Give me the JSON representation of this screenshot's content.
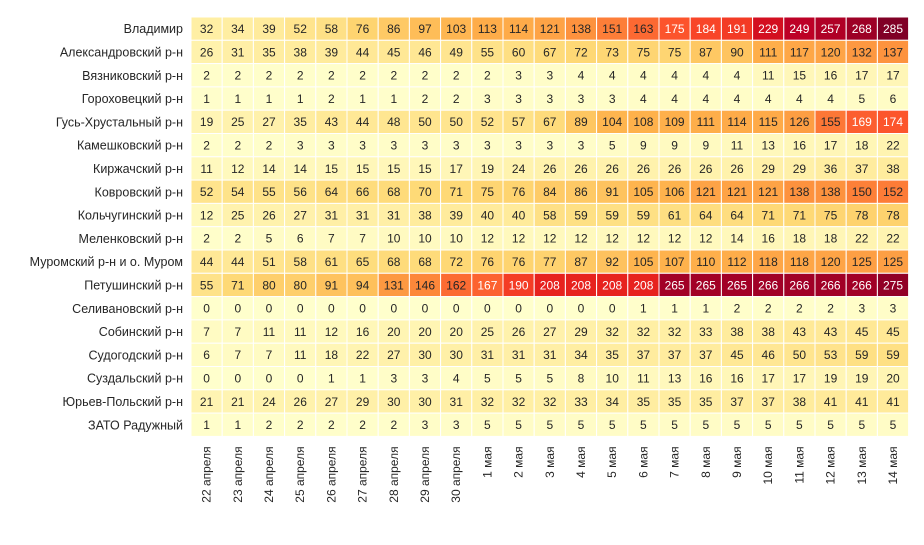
{
  "chart_data": {
    "type": "heatmap",
    "title": "",
    "xlabel": "",
    "ylabel": "",
    "x": [
      "22 апреля",
      "23 апреля",
      "24 апреля",
      "25 апреля",
      "26 апреля",
      "27 апреля",
      "28 апреля",
      "29 апреля",
      "30 апреля",
      "1 мая",
      "2 мая",
      "3 мая",
      "4 мая",
      "5 мая",
      "6 мая",
      "7 мая",
      "8 мая",
      "9 мая",
      "10 мая",
      "11 мая",
      "12 мая",
      "13 мая",
      "14 мая"
    ],
    "y": [
      "Владимир",
      "Александровский р-н",
      "Вязниковский р-н",
      "Гороховецкий р-н",
      "Гусь-Хрустальный р-н",
      "Камешковский р-н",
      "Киржачский р-н",
      "Ковровский р-н",
      "Кольчугинский р-н",
      "Меленковский р-н",
      "Муромский р-н и о. Муром",
      "Петушинский р-н",
      "Селивановский р-н",
      "Собинский р-н",
      "Судогодский р-н",
      "Суздальский р-н",
      "Юрьев-Польский р-н",
      "ЗАТО Радужный"
    ],
    "values": [
      [
        32,
        34,
        39,
        52,
        58,
        76,
        86,
        97,
        103,
        113,
        114,
        121,
        138,
        151,
        163,
        175,
        184,
        191,
        229,
        249,
        257,
        268,
        285
      ],
      [
        26,
        31,
        35,
        38,
        39,
        44,
        45,
        46,
        49,
        55,
        60,
        67,
        72,
        73,
        75,
        75,
        87,
        90,
        111,
        117,
        120,
        132,
        137
      ],
      [
        2,
        2,
        2,
        2,
        2,
        2,
        2,
        2,
        2,
        2,
        3,
        3,
        4,
        4,
        4,
        4,
        4,
        4,
        11,
        15,
        16,
        17,
        17
      ],
      [
        1,
        1,
        1,
        1,
        2,
        1,
        1,
        2,
        2,
        3,
        3,
        3,
        3,
        3,
        4,
        4,
        4,
        4,
        4,
        4,
        4,
        5,
        6
      ],
      [
        19,
        25,
        27,
        35,
        43,
        44,
        48,
        50,
        50,
        52,
        57,
        67,
        89,
        104,
        108,
        109,
        111,
        114,
        115,
        126,
        155,
        169,
        174
      ],
      [
        2,
        2,
        2,
        3,
        3,
        3,
        3,
        3,
        3,
        3,
        3,
        3,
        3,
        5,
        9,
        9,
        9,
        11,
        13,
        16,
        17,
        18,
        22
      ],
      [
        11,
        12,
        14,
        14,
        15,
        15,
        15,
        15,
        17,
        19,
        24,
        26,
        26,
        26,
        26,
        26,
        26,
        26,
        29,
        29,
        36,
        37,
        38
      ],
      [
        52,
        54,
        55,
        56,
        64,
        66,
        68,
        70,
        71,
        75,
        76,
        84,
        86,
        91,
        105,
        106,
        121,
        121,
        121,
        138,
        138,
        150,
        152
      ],
      [
        12,
        25,
        26,
        27,
        31,
        31,
        31,
        38,
        39,
        40,
        40,
        58,
        59,
        59,
        59,
        61,
        64,
        64,
        71,
        71,
        75,
        78,
        78
      ],
      [
        2,
        2,
        5,
        6,
        7,
        7,
        10,
        10,
        10,
        12,
        12,
        12,
        12,
        12,
        12,
        12,
        12,
        14,
        16,
        18,
        18,
        22,
        22
      ],
      [
        44,
        44,
        51,
        58,
        61,
        65,
        68,
        68,
        72,
        76,
        76,
        77,
        87,
        92,
        105,
        107,
        110,
        112,
        118,
        118,
        120,
        125,
        125
      ],
      [
        55,
        71,
        80,
        80,
        91,
        94,
        131,
        146,
        162,
        167,
        190,
        208,
        208,
        208,
        208,
        265,
        265,
        265,
        266,
        266,
        266,
        266,
        275
      ],
      [
        0,
        0,
        0,
        0,
        0,
        0,
        0,
        0,
        0,
        0,
        0,
        0,
        0,
        0,
        1,
        1,
        1,
        2,
        2,
        2,
        2,
        3,
        3
      ],
      [
        7,
        7,
        11,
        11,
        12,
        16,
        20,
        20,
        20,
        25,
        26,
        27,
        29,
        32,
        32,
        32,
        33,
        38,
        38,
        43,
        43,
        45,
        45
      ],
      [
        6,
        7,
        7,
        11,
        18,
        22,
        27,
        30,
        30,
        31,
        31,
        31,
        34,
        35,
        37,
        37,
        37,
        45,
        46,
        50,
        53,
        59,
        59
      ],
      [
        0,
        0,
        0,
        0,
        1,
        1,
        3,
        3,
        4,
        5,
        5,
        5,
        8,
        10,
        11,
        13,
        16,
        16,
        17,
        17,
        19,
        19,
        20
      ],
      [
        21,
        21,
        24,
        26,
        27,
        29,
        30,
        30,
        31,
        32,
        32,
        32,
        33,
        34,
        35,
        35,
        35,
        37,
        37,
        38,
        41,
        41,
        41
      ],
      [
        1,
        1,
        2,
        2,
        2,
        2,
        2,
        3,
        3,
        5,
        5,
        5,
        5,
        5,
        5,
        5,
        5,
        5,
        5,
        5,
        5,
        5,
        5
      ]
    ],
    "vmin": 0,
    "vmax": 285,
    "colormap": [
      "#ffffcc",
      "#ffeda0",
      "#fed976",
      "#feb24c",
      "#fd8d3c",
      "#fc4e2a",
      "#e31a1c",
      "#bd0026",
      "#800026"
    ],
    "grid": true,
    "legend": "none"
  }
}
